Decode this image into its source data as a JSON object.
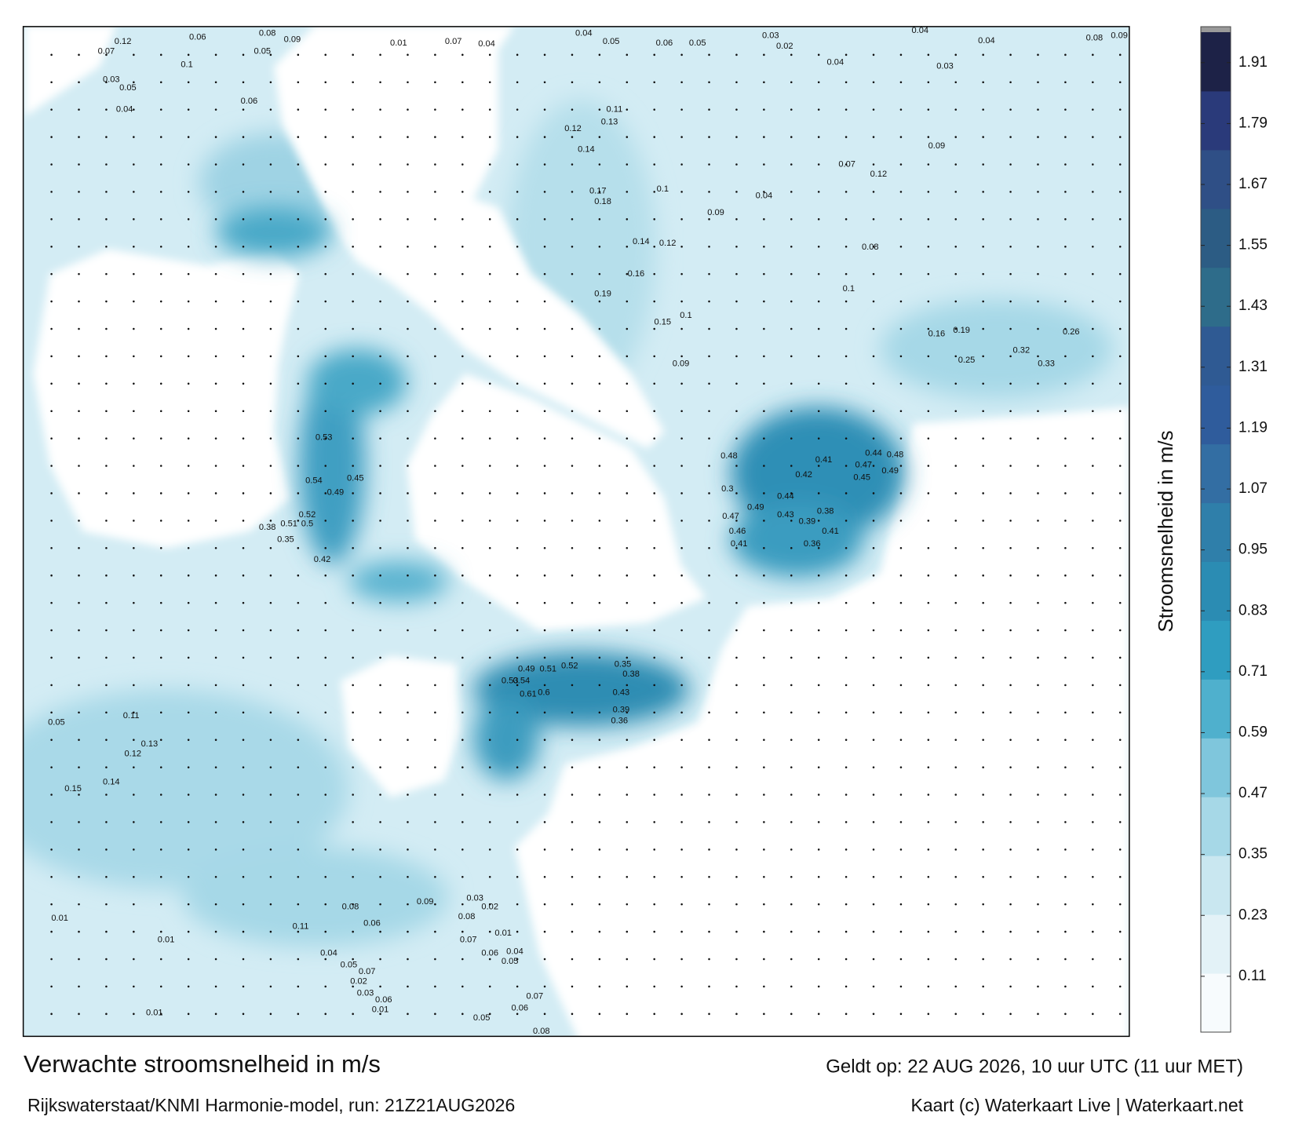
{
  "title": "Verwachte stroomsnelheid in m/s",
  "valid_time": "Geldt op: 22 AUG 2026, 10 uur UTC (11 uur MET)",
  "model_run": "Rijkswaterstaat/KNMI Harmonie-model, run: 21Z21AUG2026",
  "credit": "Kaart (c) Waterkaart Live | Waterkaart.net",
  "colorbar": {
    "label": "Stroomsnelheid in m/s",
    "lim": [
      0,
      1.97
    ],
    "ticks": [
      0.11,
      0.23,
      0.35,
      0.47,
      0.59,
      0.71,
      0.83,
      0.95,
      1.07,
      1.19,
      1.31,
      1.43,
      1.55,
      1.67,
      1.79,
      1.91
    ],
    "colors": [
      "#f7fbfd",
      "#e3f2f7",
      "#c9e7f0",
      "#a6d8e7",
      "#7fc6dc",
      "#4fb0cd",
      "#2f9dc0",
      "#2b8cb3",
      "#2f7faa",
      "#336ea3",
      "#2f5c9c",
      "#2f5a93",
      "#2e6c8a",
      "#2c5c84",
      "#2f4f86",
      "#2a3a7a",
      "#1d2247"
    ]
  },
  "map": {
    "labels": [
      0.12,
      0.06,
      0.08,
      0.09,
      0.07,
      0.05,
      0.01,
      0.07,
      0.04,
      0.04,
      0.05,
      0.06,
      0.05,
      0.03,
      0.02,
      0.04,
      0.04,
      0.08,
      0.09,
      0.04,
      0.03,
      0.1,
      0.03,
      0.05,
      0.06,
      0.04,
      0.12,
      0.11,
      0.13,
      0.14,
      0.09,
      0.07,
      0.12,
      0.17,
      0.18,
      0.1,
      0.04,
      0.09,
      0.14,
      0.12,
      0.16,
      0.19,
      0.15,
      0.1,
      0.09,
      0.08,
      0.1,
      0.16,
      0.19,
      0.32,
      0.26,
      0.33,
      0.25,
      0.41,
      0.42,
      0.44,
      0.48,
      0.47,
      0.45,
      0.49,
      0.44,
      0.43,
      0.39,
      0.38,
      0.41,
      0.36,
      0.46,
      0.41,
      0.49,
      0.47,
      0.48,
      0.3,
      0.54,
      0.49,
      0.45,
      0.53,
      0.51,
      0.5,
      0.52,
      0.38,
      0.35,
      0.42,
      0.61,
      0.6,
      0.53,
      0.54,
      0.49,
      0.51,
      0.52,
      0.43,
      0.39,
      0.36,
      0.35,
      0.38,
      0.05,
      0.11,
      0.13,
      0.12,
      0.15,
      0.14,
      0.01,
      0.01,
      0.01,
      0.05,
      0.06,
      0.08,
      0.07,
      0.06,
      0.04,
      0.05,
      0.07,
      0.02,
      0.03,
      0.06,
      0.01,
      0.04,
      0.05,
      0.11,
      0.06,
      0.09,
      0.08,
      0.07,
      0.01,
      0.03,
      0.02,
      0.08
    ]
  }
}
